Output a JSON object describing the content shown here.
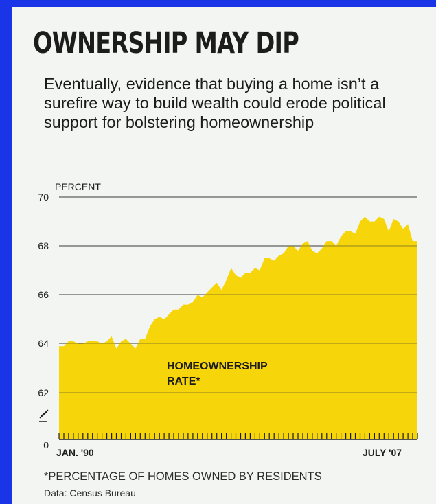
{
  "header": {
    "title": "OWNERSHIP MAY DIP",
    "subtitle": "Eventually, evidence that buying a home isn’t a surefire way to build wealth could erode political support for bolstering homeownership"
  },
  "footer": {
    "footnote": "*PERCENTAGE OF HOMES OWNED BY RESIDENTS",
    "source": "Data: Census Bureau"
  },
  "colors": {
    "page_background": "#1a34e8",
    "area_fill": "#f6d60a",
    "text": "#1c1c1c",
    "grid": "#3a3a3a"
  },
  "chart_data": {
    "type": "area",
    "ylabel": "PERCENT",
    "series_label": "HOMEOWNERSHIP RATE*",
    "ylim": [
      62,
      70
    ],
    "y_ticks": [
      "70",
      "68",
      "66",
      "64",
      "62",
      "0"
    ],
    "y_axis_break": true,
    "grid": true,
    "x_start_label": "JAN. '90",
    "x_end_label": "JULY '07",
    "x_frequency": "quarterly",
    "series": [
      {
        "values": [
          63.9,
          63.9,
          64.1,
          64.1,
          64.0,
          64.0,
          64.1,
          64.1,
          64.1,
          64.0,
          64.1,
          64.3,
          63.8,
          64.1,
          64.2,
          64.0,
          63.8,
          64.2,
          64.2,
          64.7,
          65.0,
          65.1,
          65.0,
          65.2,
          65.4,
          65.4,
          65.6,
          65.6,
          65.7,
          66.0,
          65.9,
          66.1,
          66.3,
          66.5,
          66.2,
          66.6,
          67.1,
          66.8,
          66.7,
          66.9,
          66.9,
          67.1,
          67.0,
          67.5,
          67.5,
          67.4,
          67.6,
          67.7,
          68.0,
          68.0,
          67.8,
          68.1,
          68.2,
          67.8,
          67.7,
          67.9,
          68.2,
          68.2,
          68.0,
          68.4,
          68.6,
          68.6,
          68.5,
          69.0,
          69.2,
          69.0,
          69.0,
          69.2,
          69.1,
          68.6,
          69.1,
          69.0,
          68.7,
          68.9,
          68.2,
          68.2
        ]
      }
    ]
  }
}
